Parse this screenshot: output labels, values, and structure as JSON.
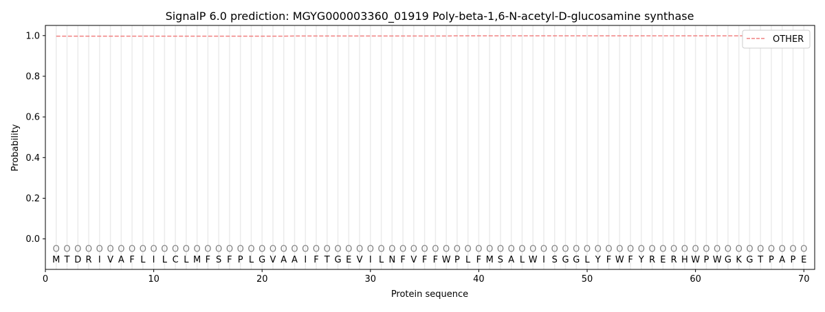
{
  "chart_data": {
    "type": "line",
    "title": "SignalP 6.0 prediction: MGYG000003360_01919 Poly-beta-1,6-N-acetyl-D-glucosamine synthase",
    "xlabel": "Protein sequence",
    "ylabel": "Probability",
    "xlim": [
      0,
      71
    ],
    "ylim": [
      -0.15,
      1.05
    ],
    "xticks": [
      0,
      10,
      20,
      30,
      40,
      50,
      60,
      70
    ],
    "yticks": [
      0.0,
      0.2,
      0.4,
      0.6,
      0.8,
      1.0
    ],
    "grid": "vertical lines at each residue",
    "legend_position": "top-right",
    "sequence": [
      "M",
      "T",
      "D",
      "R",
      "I",
      "V",
      "A",
      "F",
      "L",
      "I",
      "L",
      "C",
      "L",
      "M",
      "F",
      "S",
      "F",
      "P",
      "L",
      "G",
      "V",
      "A",
      "A",
      "I",
      "F",
      "T",
      "G",
      "E",
      "V",
      "I",
      "L",
      "N",
      "F",
      "V",
      "F",
      "F",
      "W",
      "P",
      "L",
      "F",
      "M",
      "S",
      "A",
      "L",
      "W",
      "I",
      "S",
      "G",
      "G",
      "L",
      "Y",
      "F",
      "W",
      "F",
      "Y",
      "R",
      "E",
      "R",
      "H",
      "W",
      "P",
      "W",
      "G",
      "K",
      "G",
      "T",
      "P",
      "A",
      "P",
      "E"
    ],
    "predicted_labels": "OOOOOOOOOOOOOOOOOOOOOOOOOOOOOOOOOOOOOOOOOOOOOOOOOOOOOOOOOOOOOOOOOOOOOO",
    "series": [
      {
        "name": "OTHER",
        "color": "#f08080",
        "style": "dashed",
        "values": [
          0.997,
          0.997,
          0.997,
          0.997,
          0.997,
          0.997,
          0.997,
          0.997,
          0.997,
          0.997,
          0.997,
          0.997,
          0.997,
          0.997,
          0.997,
          0.997,
          0.997,
          0.997,
          0.997,
          0.997,
          0.997,
          0.997,
          0.998,
          0.998,
          0.998,
          0.998,
          0.998,
          0.998,
          0.998,
          0.998,
          0.998,
          0.998,
          0.998,
          0.998,
          0.998,
          0.998,
          0.998,
          0.999,
          0.999,
          0.999,
          0.999,
          0.999,
          0.999,
          0.999,
          0.999,
          0.999,
          0.999,
          0.999,
          0.999,
          0.999,
          0.999,
          0.999,
          0.999,
          0.999,
          0.999,
          0.999,
          0.999,
          0.999,
          0.999,
          0.999,
          0.999,
          0.999,
          0.999,
          0.999,
          0.999,
          0.999,
          0.999,
          0.999,
          0.999,
          0.999
        ]
      }
    ]
  }
}
